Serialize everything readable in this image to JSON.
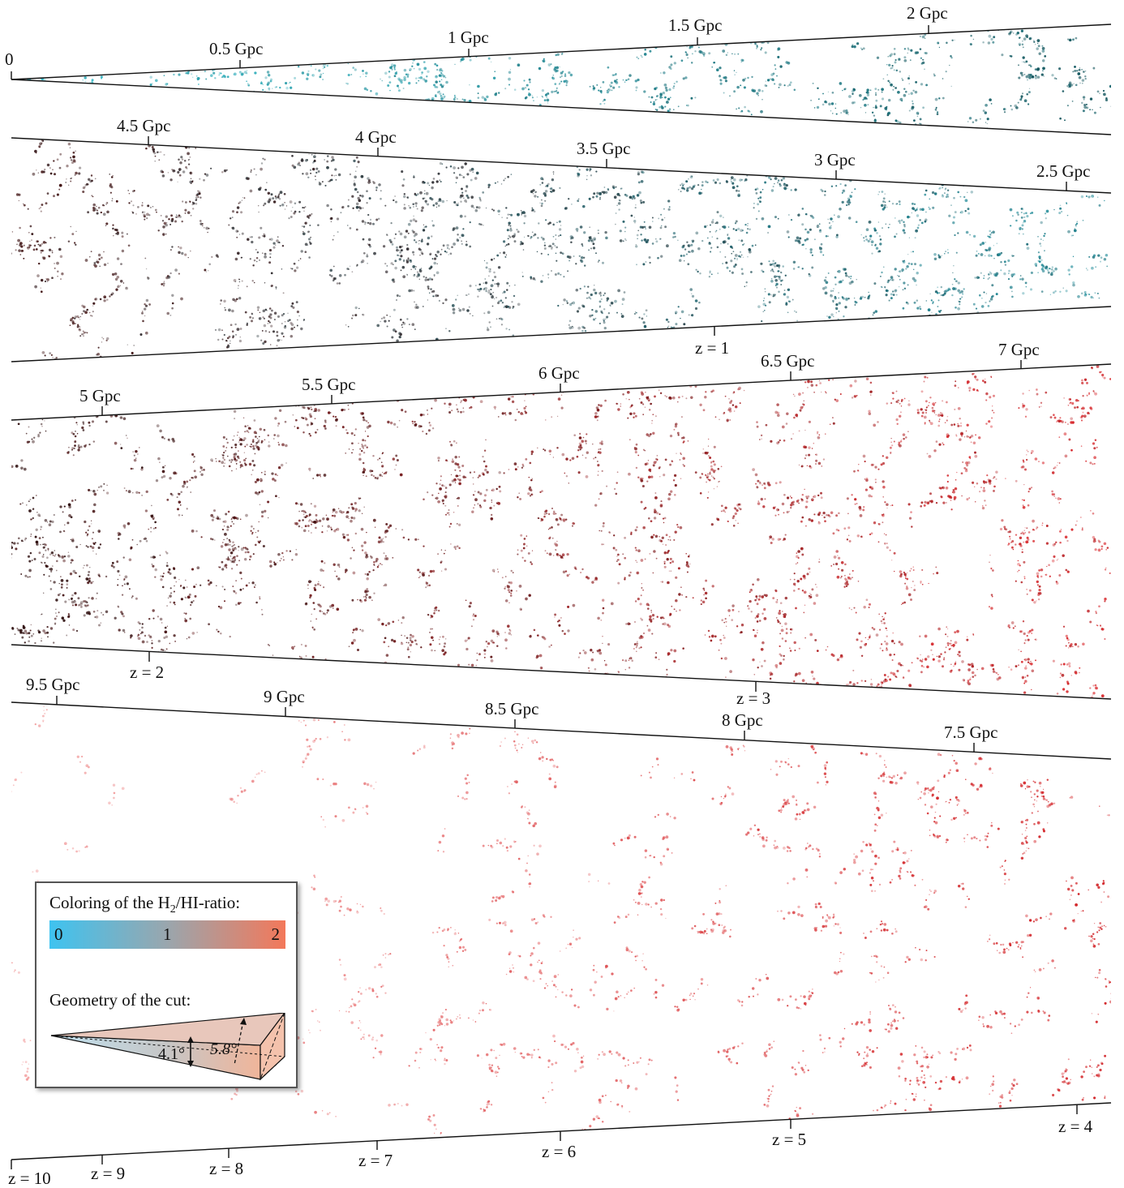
{
  "figure": {
    "strips": [
      {
        "start_label": "0",
        "distance_ticks": [
          "0.5 Gpc",
          "1 Gpc",
          "1.5 Gpc",
          "2 Gpc"
        ],
        "redshift_ticks": []
      },
      {
        "distance_ticks": [
          "4.5 Gpc",
          "4 Gpc",
          "3.5 Gpc",
          "3 Gpc",
          "2.5 Gpc"
        ],
        "redshift_ticks": [
          {
            "label": "z = 1",
            "value": 1
          }
        ]
      },
      {
        "distance_ticks": [
          "5 Gpc",
          "5.5 Gpc",
          "6 Gpc",
          "6.5 Gpc",
          "7 Gpc"
        ],
        "redshift_ticks": [
          {
            "label": "z = 2",
            "value": 2
          },
          {
            "label": "z = 3",
            "value": 3
          }
        ]
      },
      {
        "distance_ticks": [
          "9.5 Gpc",
          "9 Gpc",
          "8.5 Gpc",
          "8 Gpc",
          "7.5 Gpc"
        ],
        "redshift_ticks": [
          {
            "label": "z = 10",
            "value": 10
          },
          {
            "label": "z = 9",
            "value": 9
          },
          {
            "label": "z = 8",
            "value": 8
          },
          {
            "label": "z = 7",
            "value": 7
          },
          {
            "label": "z = 6",
            "value": 6
          },
          {
            "label": "z = 5",
            "value": 5
          },
          {
            "label": "z = 4",
            "value": 4
          }
        ]
      }
    ],
    "colors": {
      "low_ratio": "#1fa5b5",
      "mid_ratio": "#111111",
      "high_ratio": "#d8262a"
    }
  },
  "legend": {
    "coloring_title_prefix": "Coloring of the H",
    "coloring_title_sub": "2",
    "coloring_title_suffix": "/HI-ratio:",
    "colorbar": {
      "min_label": "0",
      "mid_label": "1",
      "max_label": "2",
      "min_color": "#3ec3f0",
      "mid_color": "#9aa6ad",
      "max_color": "#f3785a"
    },
    "geometry_title": "Geometry of the cut:",
    "angle_small": "4.1°",
    "angle_large": "5.8°"
  }
}
